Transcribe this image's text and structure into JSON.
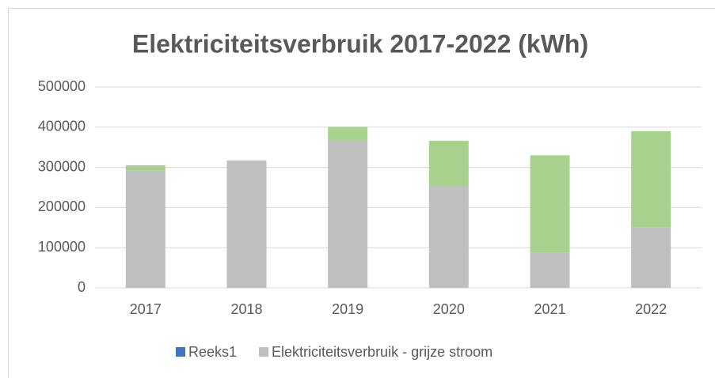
{
  "chart_data": {
    "type": "bar",
    "stacked": true,
    "title": "Elektriciteitsverbruik 2017-2022 (kWh)",
    "categories": [
      "2017",
      "2018",
      "2019",
      "2020",
      "2021",
      "2022"
    ],
    "series": [
      {
        "name": "Reeks1",
        "color": "#4472c4",
        "values": [
          0,
          0,
          0,
          0,
          0,
          0
        ]
      },
      {
        "name": "Elektriciteitsverbruik - grijze stroom",
        "color": "#bfbfbf",
        "values": [
          293000,
          317000,
          368000,
          254000,
          88000,
          150000
        ]
      },
      {
        "color": "#a9d18e",
        "values": [
          12000,
          0,
          33000,
          112000,
          242000,
          240000
        ]
      }
    ],
    "ylim": [
      0,
      500000
    ],
    "yticks": [
      0,
      100000,
      200000,
      300000,
      400000,
      500000
    ],
    "grid": true,
    "legend": "bottom"
  }
}
